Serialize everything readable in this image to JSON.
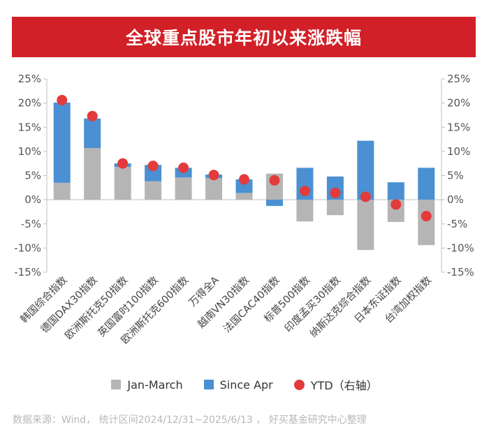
{
  "chart_data": {
    "type": "bar",
    "title": "全球重点股市年初以来涨跌幅",
    "categories": [
      "韩国综合指数",
      "德国DAX30指数",
      "欧洲斯托克50指数",
      "英国富时100指数",
      "欧洲斯托克600指数",
      "万得全A",
      "越南VN30指数",
      "法国CAC40指数",
      "标普500指数",
      "印度孟买30指数",
      "纳斯达克综合指数",
      "日本东证指数",
      "台湾加权指数"
    ],
    "series": [
      {
        "name": "Jan-March",
        "kind": "bar",
        "color": "#b5b5b5",
        "values": [
          3.5,
          10.7,
          6.8,
          3.8,
          4.6,
          4.5,
          1.4,
          5.4,
          -4.5,
          -3.2,
          -10.4,
          -4.6,
          -9.4
        ]
      },
      {
        "name": "Since Apr",
        "kind": "bar",
        "color": "#4a90d2",
        "values": [
          16.6,
          6.1,
          0.7,
          3.4,
          2.0,
          0.7,
          2.8,
          -1.3,
          6.6,
          4.8,
          12.2,
          3.6,
          6.6
        ]
      },
      {
        "name": "YTD（右轴）",
        "kind": "dot",
        "color": "#e33b3b",
        "values": [
          20.6,
          17.3,
          7.5,
          7.0,
          6.6,
          5.1,
          4.2,
          4.0,
          1.8,
          1.4,
          0.6,
          -1.0,
          -3.4
        ]
      }
    ],
    "ylim": [
      -15,
      25
    ],
    "yticks": [
      "-15%",
      "-10%",
      "-5%",
      "0%",
      "5%",
      "10%",
      "15%",
      "20%",
      "25%"
    ],
    "y2lim": [
      -15,
      25
    ],
    "y2ticks": [
      "-15%",
      "-10%",
      "-5%",
      "0%",
      "5%",
      "10%",
      "15%",
      "20%",
      "25%"
    ],
    "stacked": true,
    "legend_position": "bottom",
    "grid": false
  },
  "footer": {
    "source": "数据来源：Wind， 统计区间2024/12/31~2025/6/13 ， 好买基金研究中心整理"
  }
}
